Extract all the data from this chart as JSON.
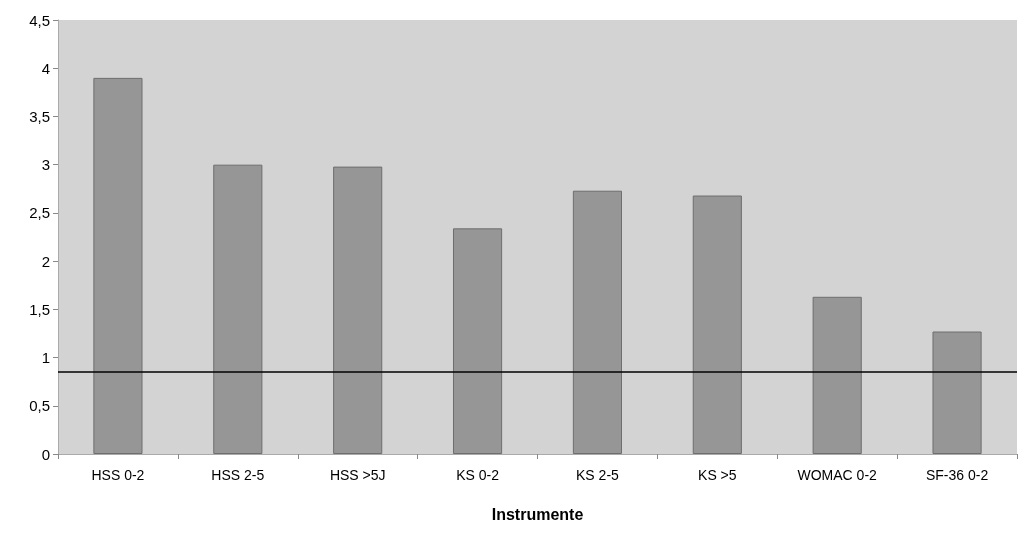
{
  "chart_data": {
    "type": "bar",
    "xlabel": "Instrumente",
    "categories": [
      "HSS 0-2",
      "HSS 2-5",
      "HSS >5J",
      "KS 0-2",
      "KS 2-5",
      "KS >5",
      "WOMAC 0-2",
      "SF-36 0-2"
    ],
    "values": [
      3.9,
      3.0,
      2.98,
      2.34,
      2.73,
      2.68,
      1.63,
      1.27
    ],
    "color": "#969696",
    "ylim": [
      0,
      4.5
    ],
    "yticks": [
      {
        "value": 0,
        "label": "0"
      },
      {
        "value": 0.5,
        "label": "0,5"
      },
      {
        "value": 1,
        "label": "1"
      },
      {
        "value": 1.5,
        "label": "1,5"
      },
      {
        "value": 2,
        "label": "2"
      },
      {
        "value": 2.5,
        "label": "2,5"
      },
      {
        "value": 3,
        "label": "3"
      },
      {
        "value": 3.5,
        "label": "3,5"
      },
      {
        "value": 4,
        "label": "4"
      },
      {
        "value": 4.5,
        "label": "4,5"
      }
    ],
    "ref_lines": [
      {
        "axis": "y",
        "value": 0.85,
        "color": "#000000"
      }
    ],
    "grid": false
  }
}
